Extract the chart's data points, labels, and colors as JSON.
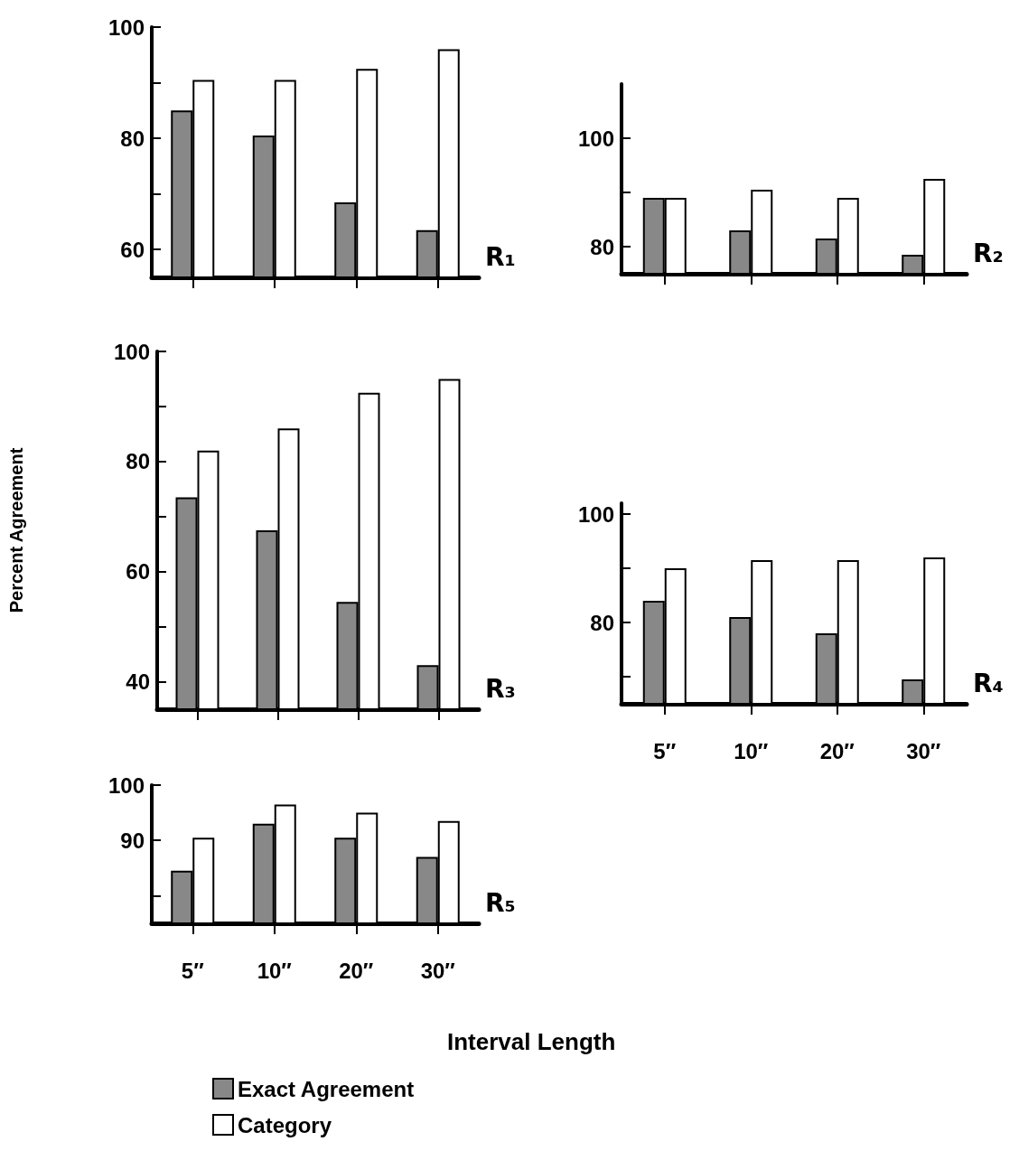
{
  "chart_data": [
    {
      "type": "bar",
      "title": "R₁",
      "categories": [
        null,
        null,
        null,
        null
      ],
      "ylim": [
        55,
        100
      ],
      "yticks": [
        60,
        {
          "value": 70,
          "label": null
        },
        80,
        {
          "value": 90,
          "label": null
        },
        100
      ],
      "series": [
        {
          "color": "#888888",
          "values": [
            85,
            80.5,
            68.5,
            63.5
          ]
        },
        {
          "color": "#ffffff",
          "values": [
            90.5,
            90.5,
            92.5,
            96
          ]
        }
      ]
    },
    {
      "type": "bar",
      "title": "R₂",
      "categories": [
        null,
        null,
        null,
        null
      ],
      "ylim": [
        75,
        110
      ],
      "yticks": [
        80,
        {
          "value": 90,
          "label": null
        },
        100
      ],
      "series": [
        {
          "color": "#888888",
          "values": [
            89,
            83,
            81.5,
            78.5
          ]
        },
        {
          "color": "#ffffff",
          "values": [
            89,
            90.5,
            89,
            92.5
          ]
        }
      ]
    },
    {
      "type": "bar",
      "title": "R₃",
      "ylabel": "Percent Agreement",
      "categories": [
        null,
        null,
        null,
        null
      ],
      "ylim": [
        35,
        100
      ],
      "yticks": [
        40,
        {
          "value": 50,
          "label": null
        },
        60,
        {
          "value": 70,
          "label": null
        },
        80,
        {
          "value": 90,
          "label": null
        },
        100
      ],
      "series": [
        {
          "color": "#888888",
          "values": [
            73.5,
            67.5,
            54.5,
            43
          ]
        },
        {
          "color": "#ffffff",
          "values": [
            82,
            86,
            92.5,
            95
          ]
        }
      ]
    },
    {
      "type": "bar",
      "title": "R₄",
      "categories": [
        "5″",
        "10″",
        "20″",
        "30″"
      ],
      "ylim": [
        65,
        102
      ],
      "yticks": [
        {
          "value": 70,
          "label": null
        },
        80,
        {
          "value": 90,
          "label": null
        },
        100
      ],
      "series": [
        {
          "color": "#888888",
          "values": [
            84,
            81,
            78,
            69.5
          ]
        },
        {
          "color": "#ffffff",
          "values": [
            90,
            91.5,
            91.5,
            92
          ]
        }
      ]
    },
    {
      "type": "bar",
      "title": "R₅",
      "xlabel": "Interval Length",
      "categories": [
        "5″",
        "10″",
        "20″",
        "30″"
      ],
      "ylim": [
        75,
        100
      ],
      "yticks": [
        {
          "value": 80,
          "label": null
        },
        90,
        100
      ],
      "legend": "bottom",
      "series": [
        {
          "name": "Exact Agreement",
          "color": "#888888",
          "values": [
            84.5,
            93,
            90.5,
            87
          ]
        },
        {
          "name": "Category",
          "color": "#ffffff",
          "values": [
            90.5,
            96.5,
            95,
            93.5
          ]
        }
      ]
    }
  ]
}
